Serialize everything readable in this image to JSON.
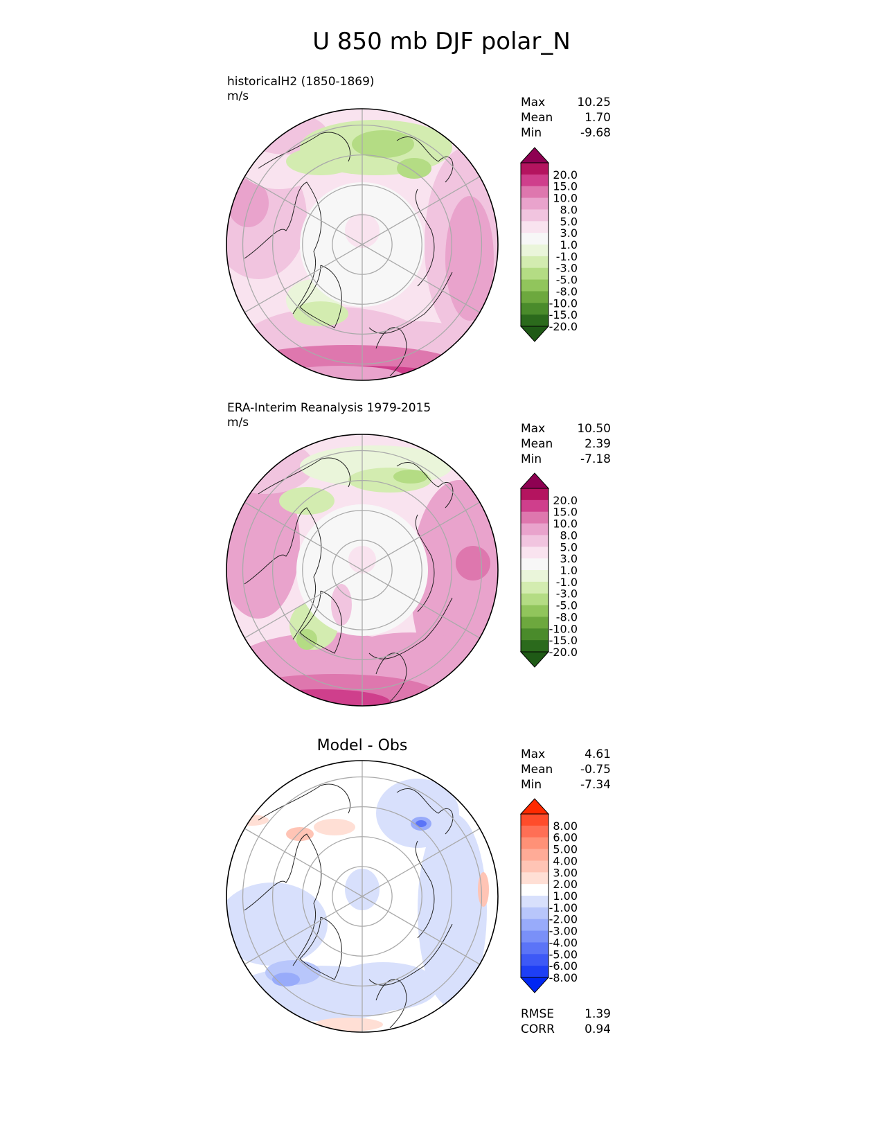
{
  "figure_title": "U 850 mb DJF polar_N",
  "panels": [
    {
      "label": "historicalH2 (1850-1869)",
      "units": "m/s",
      "stats": [
        {
          "name": "Max",
          "value": "10.25"
        },
        {
          "name": "Mean",
          "value": "1.70"
        },
        {
          "name": "Min",
          "value": "-9.68"
        }
      ]
    },
    {
      "label": "ERA-Interim Reanalysis 1979-2015",
      "units": "m/s",
      "stats": [
        {
          "name": "Max",
          "value": "10.50"
        },
        {
          "name": "Mean",
          "value": "2.39"
        },
        {
          "name": "Min",
          "value": "-7.18"
        }
      ]
    },
    {
      "title": "Model - Obs",
      "stats": [
        {
          "name": "Max",
          "value": "4.61"
        },
        {
          "name": "Mean",
          "value": "-0.75"
        },
        {
          "name": "Min",
          "value": "-7.34"
        }
      ],
      "metrics": [
        {
          "name": "RMSE",
          "value": "1.39"
        },
        {
          "name": "CORR",
          "value": "0.94"
        }
      ]
    }
  ],
  "chart_data": [
    {
      "type": "heatmap",
      "projection": "polar stereographic (north)",
      "colorbar": {
        "ticks": [
          "20.0",
          "15.0",
          "10.0",
          "8.0",
          "5.0",
          "3.0",
          "1.0",
          "-1.0",
          "-3.0",
          "-5.0",
          "-8.0",
          "-10.0",
          "-15.0",
          "-20.0"
        ],
        "colors": [
          "#8e0152",
          "#b4145f",
          "#cf3f8c",
          "#de77ae",
          "#e9a3cc",
          "#f1c4df",
          "#f9e3ef",
          "#f7f7f7",
          "#eaf5da",
          "#d3ecb0",
          "#b4dc84",
          "#91c55c",
          "#6da83e",
          "#4a8b2b",
          "#2b6a1c",
          "#1f5a16"
        ],
        "extend": "both"
      }
    },
    {
      "type": "heatmap",
      "projection": "polar stereographic (north)",
      "colorbar": {
        "ticks": [
          "20.0",
          "15.0",
          "10.0",
          "8.0",
          "5.0",
          "3.0",
          "1.0",
          "-1.0",
          "-3.0",
          "-5.0",
          "-8.0",
          "-10.0",
          "-15.0",
          "-20.0"
        ],
        "colors": [
          "#8e0152",
          "#b4145f",
          "#cf3f8c",
          "#de77ae",
          "#e9a3cc",
          "#f1c4df",
          "#f9e3ef",
          "#f7f7f7",
          "#eaf5da",
          "#d3ecb0",
          "#b4dc84",
          "#91c55c",
          "#6da83e",
          "#4a8b2b",
          "#2b6a1c",
          "#1f5a16"
        ],
        "extend": "both"
      }
    },
    {
      "type": "heatmap",
      "projection": "polar stereographic (north)",
      "colorbar": {
        "ticks": [
          "8.00",
          "6.00",
          "5.00",
          "4.00",
          "3.00",
          "2.00",
          "1.00",
          "-1.00",
          "-2.00",
          "-3.00",
          "-4.00",
          "-5.00",
          "-6.00",
          "-8.00"
        ],
        "colors": [
          "#ff2a00",
          "#ff4c2b",
          "#ff6f55",
          "#ff9177",
          "#ffab97",
          "#ffc4b5",
          "#ffdfd5",
          "#ffffff",
          "#d8e0fc",
          "#b8c6fb",
          "#98abfa",
          "#7a90f8",
          "#5b74f7",
          "#3d59f6",
          "#1e3ff5",
          "#0026f3"
        ],
        "extend": "both"
      }
    }
  ]
}
